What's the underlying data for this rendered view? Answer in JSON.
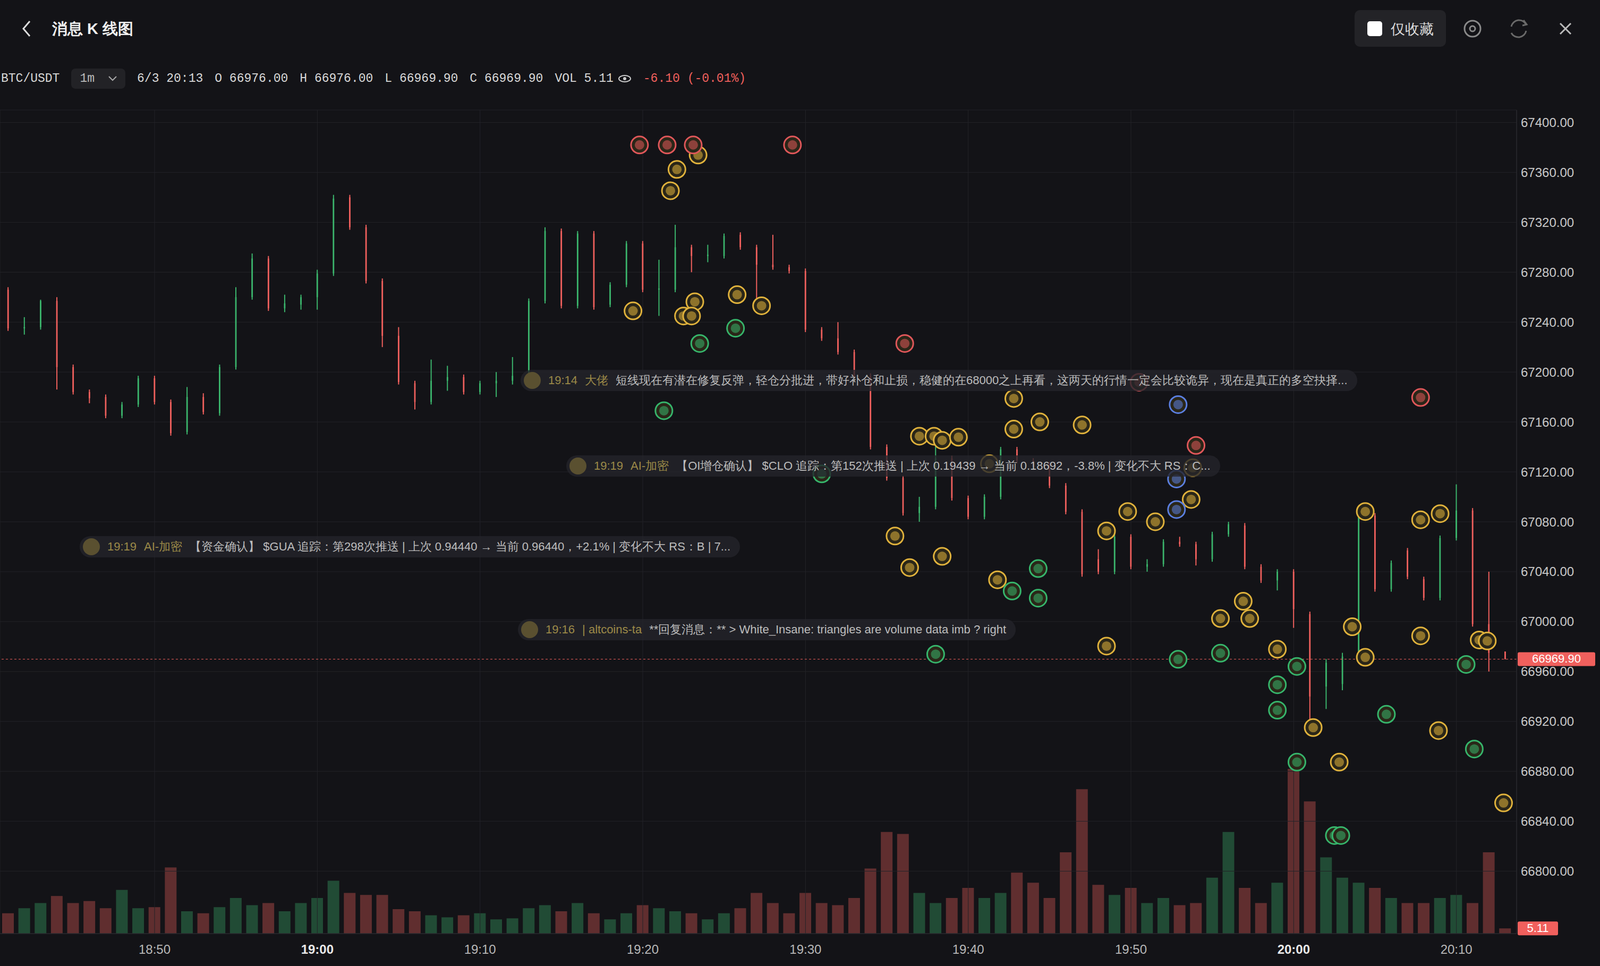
{
  "header": {
    "title": "消息 K 线图",
    "filter": "仅收藏"
  },
  "info": {
    "symbol": "BTC/USDT",
    "interval": "1m",
    "time": "6/3 20:13",
    "open": "O 66976.00",
    "high": "H 66976.00",
    "low": "L 66969.90",
    "close": "C 66969.90",
    "volume": "VOL 5.11",
    "change": "-6.10 (-0.01%)"
  },
  "messages": [
    {
      "time": "19:14",
      "channel": "大佬",
      "text": "短线现在有潜在修复反弹，轻仓分批进，带好补仓和止损，稳健的在68000之上再看，这两天的行情一定会比较诡异，现在是真正的多空抉择..."
    },
    {
      "time": "19:19",
      "channel": "AI-加密",
      "text": "【OI增仓确认】 $CLO 追踪：第152次推送 | 上次 0.19439 → 当前 0.18692，-3.8% | 变化不大 RS：C..."
    },
    {
      "time": "19:19",
      "channel": "AI-加密",
      "text": "【资金确认】 $GUA 追踪：第298次推送 | 上次 0.94440 → 当前 0.96440，+2.1% | 变化不大 RS：B | 7..."
    },
    {
      "time": "19:16",
      "channel": "| altcoins-ta",
      "text": "**回复消息：** > White_Insane: triangles are volume data imb ? right"
    }
  ],
  "chart_data": {
    "type": "candlestick",
    "grid": true,
    "x": [
      1121,
      1122,
      1123,
      1124,
      1125,
      1126,
      1127,
      1128,
      1129,
      1130,
      1131,
      1132,
      1133,
      1134,
      1135,
      1136,
      1137,
      1138,
      1139,
      1140,
      1141,
      1142,
      1143,
      1144,
      1145,
      1146,
      1147,
      1148,
      1149,
      1150,
      1151,
      1152,
      1153,
      1154,
      1155,
      1156,
      1157,
      1158,
      1159,
      1160,
      1161,
      1162,
      1163,
      1164,
      1165,
      1166,
      1167,
      1168,
      1169,
      1170,
      1171,
      1172,
      1173,
      1174,
      1175,
      1176,
      1177,
      1178,
      1179,
      1180,
      1181,
      1182,
      1183,
      1184,
      1185,
      1186,
      1187,
      1188,
      1189,
      1190,
      1191,
      1192,
      1193,
      1194,
      1195,
      1196,
      1197,
      1198,
      1199,
      1200,
      1201,
      1202,
      1203,
      1204,
      1205,
      1206,
      1207,
      1208,
      1209,
      1210,
      1211,
      1212,
      1213
    ],
    "open": [
      67266,
      67235,
      67236,
      67257,
      67204,
      67184,
      67180,
      67165,
      67174,
      67195,
      67176,
      67152,
      67180,
      67167,
      67204,
      67260,
      67291,
      67251,
      67254,
      67260,
      67279,
      67340,
      67316,
      67273,
      67229,
      67191,
      67176,
      67193,
      67196,
      67184,
      67191,
      67193,
      67193,
      67257,
      67313,
      67253,
      67311,
      67254,
      67270,
      67303,
      67266,
      67266,
      67300,
      67293,
      67293,
      67310,
      67300,
      67286,
      67284,
      67281,
      67234,
      67227,
      67216,
      67197,
      67140,
      67115,
      67087,
      67092,
      67131,
      67099,
      67084,
      67100,
      67138,
      67129,
      67126,
      67109,
      67088,
      67050,
      67040,
      67068,
      67044,
      67046,
      67064,
      67062,
      67050,
      67070,
      67077,
      67044,
      67033,
      67040,
      67006,
      66948,
      66950,
      66972,
      67085,
      67026,
      67057,
      67034,
      67019,
      67067,
      67089,
      66998,
      66976
    ],
    "high": [
      67268,
      67244,
      67258,
      67260,
      67206,
      67186,
      67182,
      67176,
      67197,
      67197,
      67178,
      67188,
      67183,
      67206,
      67268,
      67295,
      67293,
      67262,
      67262,
      67282,
      67342,
      67342,
      67318,
      67275,
      67236,
      67193,
      67210,
      67205,
      67198,
      67193,
      67200,
      67212,
      67259,
      67316,
      67315,
      67313,
      67313,
      67272,
      67305,
      67305,
      67290,
      67318,
      67302,
      67302,
      67311,
      67312,
      67302,
      67310,
      67286,
      67283,
      67236,
      67240,
      67218,
      67199,
      67142,
      67117,
      67100,
      67150,
      67133,
      67101,
      67102,
      67140,
      67140,
      67131,
      67128,
      67111,
      67090,
      67058,
      67070,
      67070,
      67050,
      67066,
      67068,
      67064,
      67072,
      67080,
      67079,
      67046,
      67042,
      67042,
      67008,
      66970,
      66975,
      67093,
      67087,
      67049,
      67059,
      67036,
      67069,
      67110,
      67091,
      67040,
      66976
    ],
    "low": [
      67233,
      67230,
      67234,
      67186,
      67182,
      67175,
      67163,
      67163,
      67172,
      67174,
      67149,
      67150,
      67166,
      67165,
      67202,
      67258,
      67249,
      67248,
      67250,
      67250,
      67277,
      67314,
      67271,
      67220,
      67190,
      67170,
      67174,
      67185,
      67182,
      67182,
      67180,
      67190,
      67191,
      67255,
      67251,
      67251,
      67250,
      67252,
      67268,
      67264,
      67245,
      67264,
      67280,
      67288,
      67291,
      67298,
      67258,
      67282,
      67279,
      67232,
      67225,
      67214,
      67195,
      67138,
      67113,
      67085,
      67080,
      67090,
      67097,
      67082,
      67082,
      67098,
      67127,
      67124,
      67107,
      67086,
      67036,
      67038,
      67038,
      67042,
      67040,
      67044,
      67060,
      67045,
      67048,
      67068,
      67042,
      67031,
      67025,
      66995,
      66915,
      66930,
      66945,
      66970,
      67024,
      67024,
      67034,
      67017,
      67017,
      67065,
      66996,
      66960,
      66969.9
    ],
    "close": [
      67235,
      67236,
      67257,
      67204,
      67184,
      67179,
      67165,
      67174,
      67195,
      67176,
      67151,
      67180,
      67168,
      67204,
      67260,
      67291,
      67251,
      67255,
      67260,
      67279,
      67339,
      67316,
      67273,
      67229,
      67192,
      67176,
      67193,
      67196,
      67184,
      67191,
      67193,
      67197,
      67257,
      67313,
      67253,
      67311,
      67252,
      67270,
      67303,
      67266,
      67267,
      67300,
      67293,
      67294,
      67309,
      67300,
      67286,
      67284,
      67281,
      67234,
      67227,
      67216,
      67197,
      67140,
      67115,
      67087,
      67092,
      67131,
      67099,
      67084,
      67100,
      67138,
      67129,
      67126,
      67109,
      67088,
      67038,
      67040,
      67068,
      67044,
      67046,
      67064,
      67062,
      67050,
      67070,
      67078,
      67044,
      67033,
      67040,
      67010,
      66940,
      66967,
      66972,
      67085,
      67026,
      67047,
      67036,
      67019,
      67067,
      67089,
      66998,
      66975,
      66969.9
    ],
    "volume": [
      20,
      25,
      30,
      37,
      30,
      32,
      25,
      43,
      25,
      26,
      65,
      22,
      20,
      26,
      35,
      28,
      30,
      22,
      30,
      35,
      52,
      40,
      38,
      38,
      24,
      22,
      18,
      16,
      18,
      20,
      14,
      15,
      25,
      28,
      22,
      30,
      20,
      14,
      20,
      28,
      25,
      22,
      20,
      14,
      20,
      25,
      40,
      30,
      20,
      40,
      30,
      28,
      35,
      64,
      100,
      98,
      40,
      30,
      35,
      45,
      35,
      40,
      60,
      50,
      35,
      80,
      142,
      48,
      38,
      45,
      30,
      35,
      28,
      30,
      55,
      100,
      45,
      30,
      50,
      162,
      130,
      75,
      55,
      50,
      45,
      35,
      30,
      30,
      35,
      38,
      30,
      80,
      5.11
    ],
    "xlim": [
      1120.5,
      1213.7
    ],
    "xticks": [
      {
        "value": 1130,
        "label": "18:50"
      },
      {
        "value": 1140,
        "label": "19:00"
      },
      {
        "value": 1150,
        "label": "19:10"
      },
      {
        "value": 1160,
        "label": "19:20"
      },
      {
        "value": 1170,
        "label": "19:30"
      },
      {
        "value": 1180,
        "label": "19:40"
      },
      {
        "value": 1190,
        "label": "19:50"
      },
      {
        "value": 1200,
        "label": "20:00"
      },
      {
        "value": 1210,
        "label": "20:10"
      }
    ],
    "ylim": [
      66750,
      67410
    ],
    "yticks": [
      {
        "value": 66800,
        "label": "66800.00"
      },
      {
        "value": 66840,
        "label": "66840.00"
      },
      {
        "value": 66880,
        "label": "66880.00"
      },
      {
        "value": 66920,
        "label": "66920.00"
      },
      {
        "value": 66960,
        "label": "66960.00"
      },
      {
        "value": 67000,
        "label": "67000.00"
      },
      {
        "value": 67040,
        "label": "67040.00"
      },
      {
        "value": 67080,
        "label": "67080.00"
      },
      {
        "value": 67120,
        "label": "67120.00"
      },
      {
        "value": 67160,
        "label": "67160.00"
      },
      {
        "value": 67200,
        "label": "67200.00"
      },
      {
        "value": 67240,
        "label": "67240.00"
      },
      {
        "value": 67280,
        "label": "67280.00"
      },
      {
        "value": 67320,
        "label": "67320.00"
      },
      {
        "value": 67360,
        "label": "67360.00"
      },
      {
        "value": 67400,
        "label": "67400.00"
      }
    ],
    "volume_lim": [
      0,
      810
    ],
    "last_price": {
      "value": 66969.9,
      "label": "66969.90"
    },
    "markers": [
      {
        "color": "#e0b23c",
        "x": [
          1163.4,
          1162.1,
          1161.7,
          1159.4,
          1163.2,
          1162.5,
          1163.0,
          1165.8,
          1167.3,
          1182.8,
          1182.8,
          1184.4,
          1187.0,
          1177.0,
          1177.9,
          1178.4,
          1179.4,
          1181.3,
          1193.8,
          1193.7,
          1189.8,
          1191.5,
          1188.5,
          1175.5,
          1176.4,
          1178.4,
          1181.8,
          1195.5,
          1196.9,
          1197.3,
          1188.5,
          1199.0,
          1201.2,
          1202.8,
          1203.6,
          1204.4,
          1204.4,
          1207.8,
          1209.0,
          1207.8,
          1211.4,
          1211.9,
          1208.9,
          1212.9
        ],
        "y": [
          67373.9,
          67362.4,
          67345.3,
          67249.0,
          67256.3,
          67244.9,
          67244.9,
          67262.0,
          67253.1,
          67178.8,
          67154.3,
          67160.0,
          67157.6,
          67148.6,
          67148.6,
          67145.3,
          67147.8,
          67126.5,
          67123.3,
          67097.9,
          67088.2,
          67080.0,
          67072.7,
          67068.6,
          67043.3,
          67052.3,
          67033.5,
          67002.5,
          67016.3,
          67002.5,
          66980.4,
          66977.9,
          66915.1,
          66887.4,
          66995.9,
          67088.2,
          66971.4,
          67081.6,
          67086.5,
          66988.6,
          66985.3,
          66984.5,
          66912.7,
          66854.7
        ]
      },
      {
        "color": "#36b56b",
        "x": [
          1165.7,
          1163.5,
          1161.3,
          1184.3,
          1184.3,
          1178.0,
          1171.0,
          1192.9,
          1195.5,
          1199.0,
          1199.0,
          1200.2,
          1200.2,
          1202.5,
          1202.9,
          1205.7,
          1210.6,
          1211.1,
          1182.7
        ],
        "y": [
          67235.1,
          67222.9,
          67169.0,
          67042.5,
          67018.8,
          66973.9,
          67118.4,
          66969.8,
          66974.7,
          66949.4,
          66929.0,
          66964.1,
          66887.4,
          66828.6,
          66828.6,
          66925.7,
          66965.7,
          66897.9,
          67024.5
        ]
      },
      {
        "color": "#e0575a",
        "x": [
          1159.8,
          1161.5,
          1163.1,
          1169.2,
          1176.1,
          1194.0,
          1190.5,
          1207.8
        ],
        "y": [
          67382.0,
          67382.0,
          67382.0,
          67382.0,
          67222.9,
          67141.2,
          67191.8,
          67179.6
        ]
      },
      {
        "color": "#5b7fe0",
        "x": [
          1192.9,
          1192.8,
          1192.8
        ],
        "y": [
          67173.9,
          67114.3,
          67089.8
        ]
      }
    ]
  }
}
